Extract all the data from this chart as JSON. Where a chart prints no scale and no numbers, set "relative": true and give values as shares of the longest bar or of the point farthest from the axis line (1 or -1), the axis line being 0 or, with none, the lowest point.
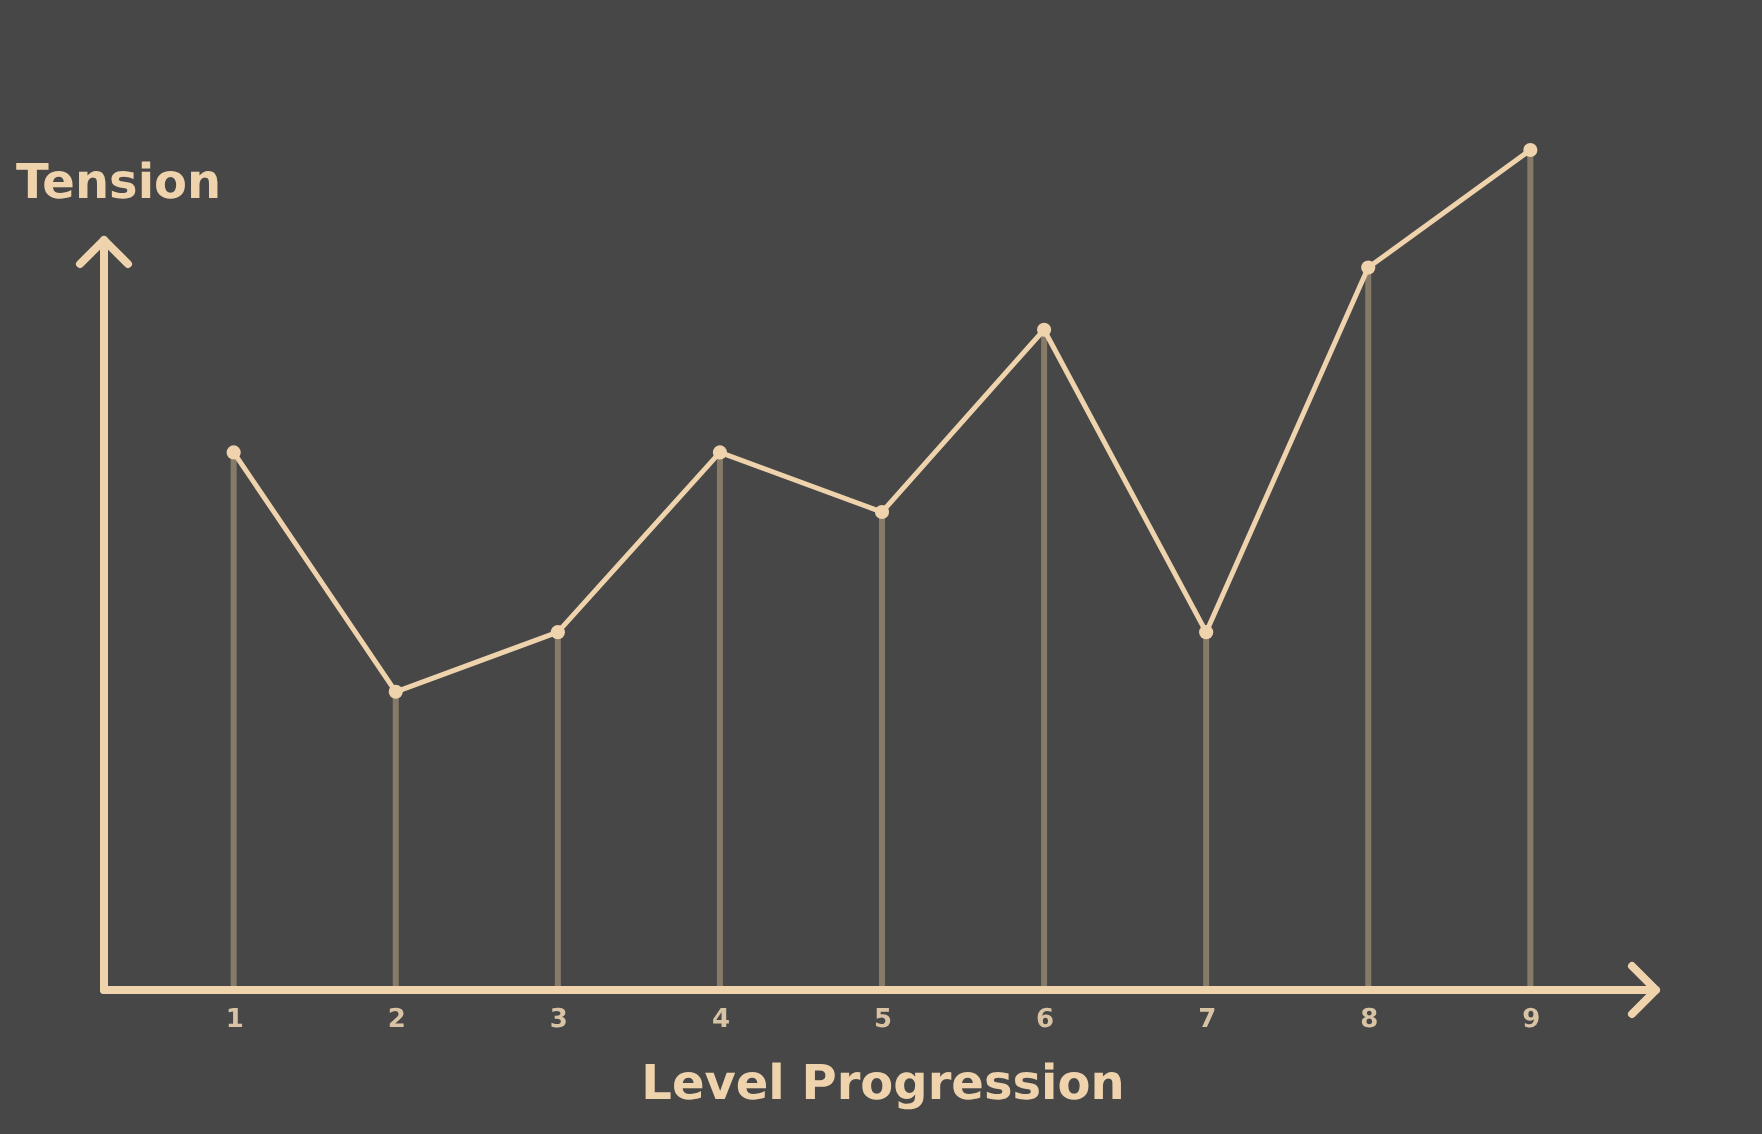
{
  "chart_data": {
    "type": "line",
    "relative": true,
    "xlabel": "Level Progression",
    "ylabel": "Tension",
    "categories": [
      "1",
      "2",
      "3",
      "4",
      "5",
      "6",
      "7",
      "8",
      "9"
    ],
    "series": [
      {
        "type": "bar",
        "color": "#8a7d6c",
        "values": [
          0.64,
          0.355,
          0.426,
          0.64,
          0.569,
          0.786,
          0.426,
          0.86,
          1
        ]
      },
      {
        "color": "#efd3ad",
        "values": [
          0.64,
          0.355,
          0.426,
          0.64,
          0.569,
          0.786,
          0.426,
          0.86,
          1
        ]
      }
    ],
    "marker": "circle",
    "tick_labels": "x"
  }
}
